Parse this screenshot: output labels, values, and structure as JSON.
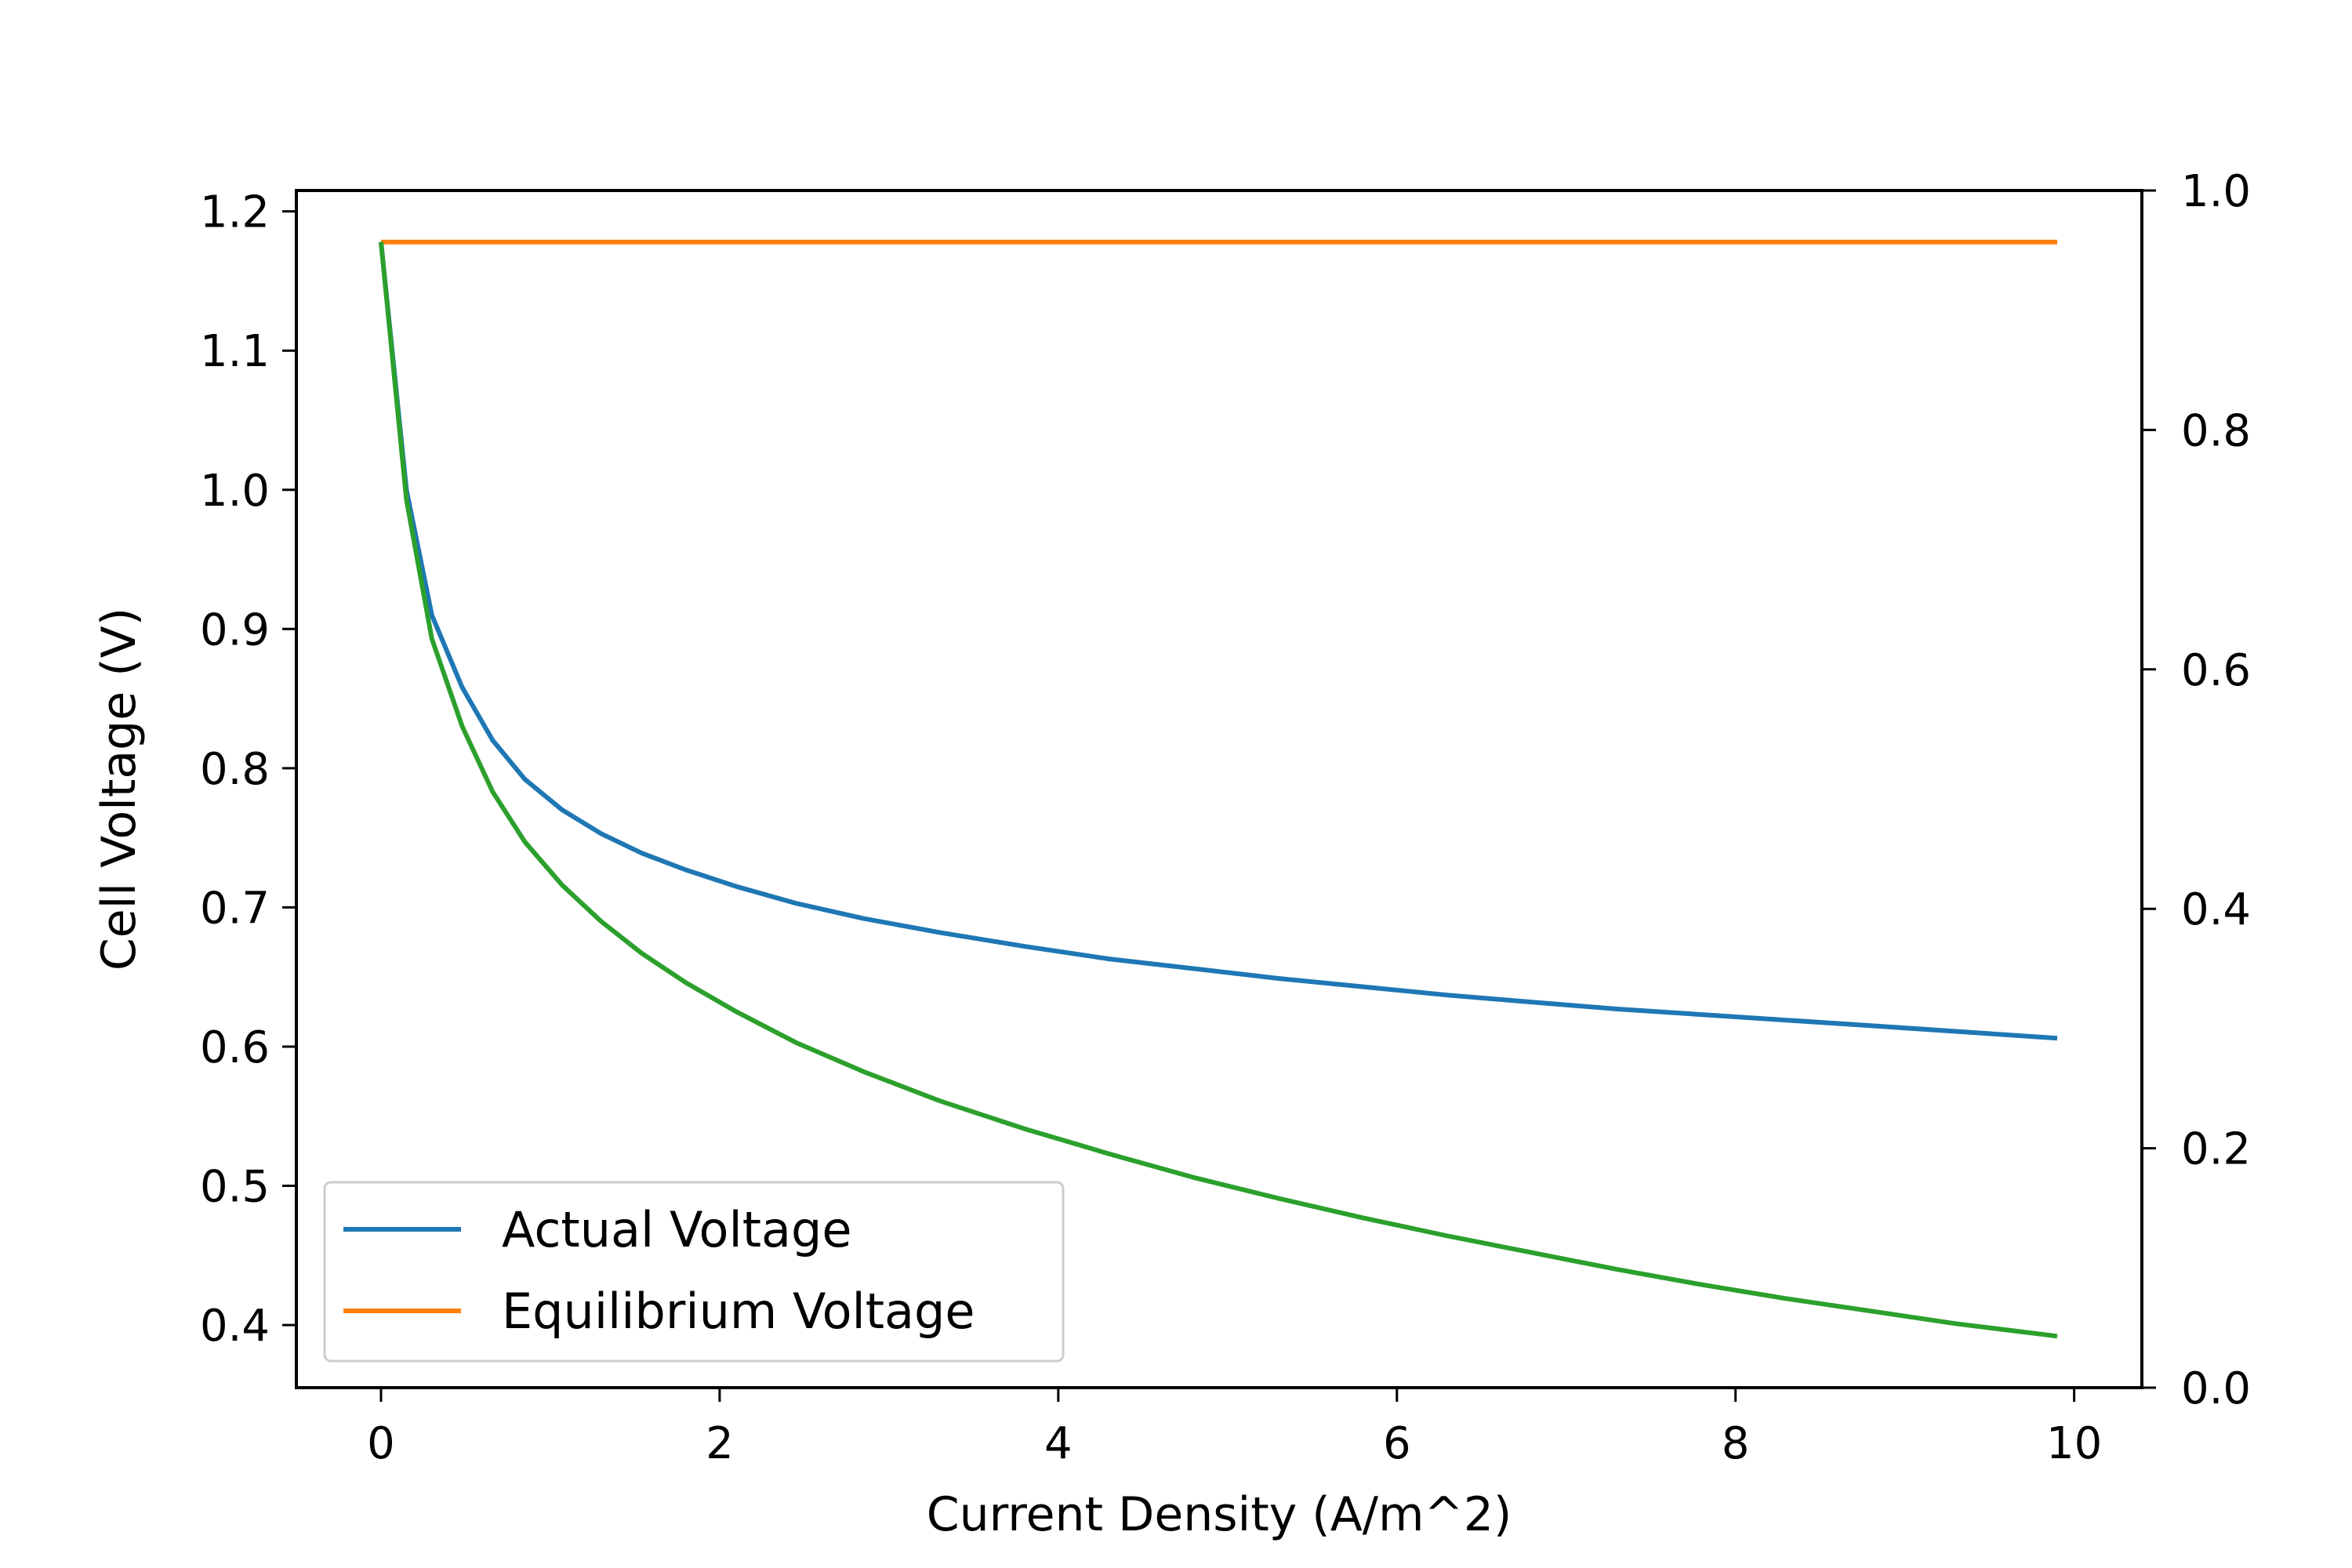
{
  "chart_data": {
    "type": "line",
    "xlabel": "Current Density (A/m^2)",
    "ylabel": "Cell Voltage (V)",
    "xlim": [
      -0.5,
      10.4
    ],
    "ylim": [
      0.355,
      1.215
    ],
    "y2lim": [
      0.0,
      1.0
    ],
    "xticks": [
      0,
      2,
      4,
      6,
      8,
      10
    ],
    "yticks": [
      0.4,
      0.5,
      0.6,
      0.7,
      0.8,
      0.9,
      1.0,
      1.1,
      1.2
    ],
    "y2ticks": [
      0.0,
      0.2,
      0.4,
      0.6,
      0.8,
      1.0
    ],
    "legend_position": "lower-left",
    "series": [
      {
        "name": "Actual Voltage",
        "color": "#1f77b4",
        "x": [
          0,
          0.15,
          0.3,
          0.48,
          0.66,
          0.85,
          1.07,
          1.3,
          1.54,
          1.8,
          2.1,
          2.45,
          2.85,
          3.3,
          3.8,
          4.3,
          4.8,
          5.3,
          5.8,
          6.3,
          6.8,
          7.3,
          7.8,
          8.3,
          8.8,
          9.3,
          9.9
        ],
        "y": [
          1.178,
          1.0,
          0.91,
          0.858,
          0.82,
          0.792,
          0.77,
          0.753,
          0.739,
          0.727,
          0.715,
          0.703,
          0.692,
          0.682,
          0.672,
          0.663,
          0.656,
          0.649,
          0.643,
          0.637,
          0.632,
          0.627,
          0.623,
          0.619,
          0.615,
          0.611,
          0.606
        ]
      },
      {
        "name": "Equilibrium Voltage",
        "color": "#ff7f0e",
        "x": [
          0,
          9.9
        ],
        "y": [
          1.178,
          1.178
        ]
      },
      {
        "color": "#2ca02c",
        "x": [
          0,
          0.15,
          0.3,
          0.48,
          0.66,
          0.85,
          1.07,
          1.3,
          1.54,
          1.8,
          2.1,
          2.45,
          2.85,
          3.3,
          3.8,
          4.3,
          4.8,
          5.3,
          5.8,
          6.3,
          6.8,
          7.3,
          7.8,
          8.3,
          8.8,
          9.3,
          9.9
        ],
        "y": [
          1.178,
          0.993,
          0.893,
          0.83,
          0.783,
          0.747,
          0.716,
          0.69,
          0.667,
          0.646,
          0.625,
          0.603,
          0.582,
          0.561,
          0.541,
          0.523,
          0.506,
          0.491,
          0.477,
          0.464,
          0.452,
          0.44,
          0.429,
          0.419,
          0.41,
          0.401,
          0.392
        ]
      }
    ]
  }
}
